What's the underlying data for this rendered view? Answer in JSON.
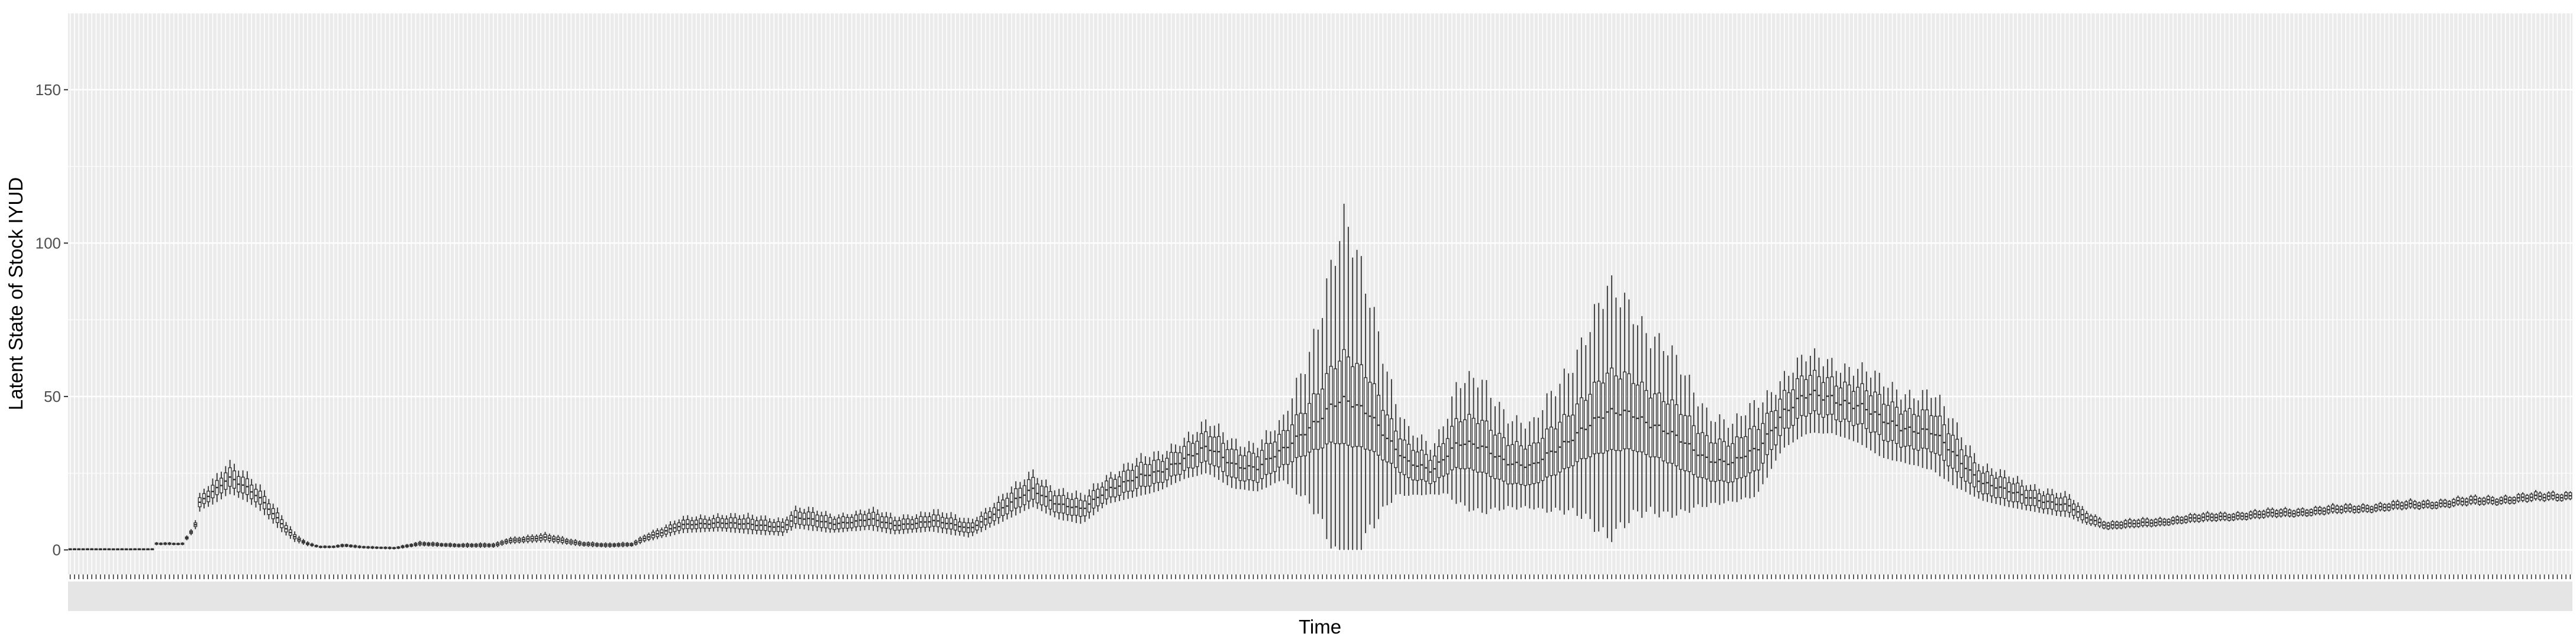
{
  "chart_data": {
    "type": "boxplot",
    "title": "",
    "xlabel": "Time",
    "ylabel": "Latent State of Stock IYUD",
    "ylim": [
      -8,
      175
    ],
    "y_ticks": [
      0,
      50,
      100,
      150
    ],
    "x_ticks_legible": false,
    "grid": true,
    "legend": "none",
    "colors": {
      "panel": "#ebebeb",
      "grid": "#ffffff",
      "box": "#333333",
      "tick_text": "#4d4d4d"
    },
    "series": [
      {
        "name": "",
        "keyframes": {
          "x": [
            0,
            0.033,
            0.034,
            0.045,
            0.05,
            0.052,
            0.058,
            0.063,
            0.065,
            0.07,
            0.075,
            0.08,
            0.085,
            0.09,
            0.095,
            0.1,
            0.105,
            0.11,
            0.115,
            0.12,
            0.13,
            0.14,
            0.155,
            0.17,
            0.175,
            0.19,
            0.205,
            0.215,
            0.225,
            0.23,
            0.245,
            0.26,
            0.275,
            0.285,
            0.29,
            0.295,
            0.305,
            0.32,
            0.33,
            0.345,
            0.36,
            0.37,
            0.38,
            0.385,
            0.395,
            0.405,
            0.415,
            0.425,
            0.435,
            0.445,
            0.455,
            0.465,
            0.475,
            0.485,
            0.495,
            0.505,
            0.51,
            0.52,
            0.53,
            0.535,
            0.545,
            0.55,
            0.555,
            0.565,
            0.575,
            0.585,
            0.595,
            0.605,
            0.615,
            0.625,
            0.635,
            0.645,
            0.655,
            0.665,
            0.675,
            0.685,
            0.695,
            0.705,
            0.715,
            0.725,
            0.735,
            0.745,
            0.755,
            0.765,
            0.775,
            0.785,
            0.795,
            0.8,
            0.805,
            0.815,
            0.825,
            0.835,
            0.845,
            0.855,
            0.865,
            0.875,
            0.885,
            0.895,
            0.905,
            0.915,
            0.925,
            0.935,
            0.945,
            0.955,
            0.965,
            0.975,
            0.985,
            0.995,
            1.0
          ],
          "median": [
            0.3,
            0.3,
            2,
            2,
            8,
            16,
            19,
            23,
            23,
            21,
            18,
            13,
            8,
            4,
            2,
            1,
            1,
            1.5,
            1,
            0.8,
            0.6,
            2,
            1.5,
            1.5,
            3,
            4,
            2,
            1.5,
            1.8,
            4,
            8,
            9,
            8,
            7.5,
            10.5,
            10,
            8.5,
            10,
            8,
            9.5,
            7,
            12,
            17,
            20,
            15,
            13,
            20,
            23,
            25,
            30,
            33,
            28,
            27,
            32,
            40,
            47,
            48,
            45,
            33,
            28,
            26,
            31,
            35,
            33,
            29,
            27,
            33,
            40,
            44,
            45,
            40,
            35,
            30,
            28,
            33,
            45,
            50,
            50,
            47,
            42,
            40,
            38,
            30,
            22,
            19,
            17,
            15,
            14,
            11,
            8,
            8.5,
            9,
            10,
            10.5,
            11,
            11.5,
            12,
            12.5,
            13,
            13.5,
            14,
            14.5,
            15,
            15.5,
            16,
            16.5,
            17,
            17.5,
            17.8
          ],
          "q_half": [
            0,
            0,
            0.2,
            0.2,
            0.6,
            1.5,
            2,
            2.8,
            2.8,
            2.6,
            2.2,
            1.8,
            1.2,
            0.6,
            0.3,
            0.2,
            0.2,
            0.3,
            0.2,
            0.2,
            0.2,
            0.4,
            0.4,
            0.4,
            0.6,
            0.8,
            0.5,
            0.4,
            0.4,
            0.8,
            1.3,
            1.6,
            1.6,
            1.6,
            2,
            2,
            1.8,
            2,
            1.6,
            1.8,
            1.5,
            2.2,
            3,
            3.5,
            2.8,
            2.4,
            3,
            3.5,
            3.5,
            4,
            4.5,
            4.5,
            4.5,
            5,
            8,
            12,
            14,
            12,
            6,
            5,
            4,
            6,
            8,
            8,
            7,
            6,
            8,
            10,
            12,
            12,
            10,
            9,
            7,
            6,
            7,
            6,
            6,
            6,
            6,
            6,
            6,
            6,
            5,
            3.5,
            3,
            2.5,
            2.2,
            2,
            1.5,
            1,
            1,
            1,
            1,
            1,
            1,
            1,
            1,
            1,
            1,
            1,
            1,
            1,
            1,
            1,
            1,
            1,
            1,
            1,
            1
          ],
          "w_half": [
            0.2,
            0.2,
            0.5,
            0.5,
            1.5,
            3,
            4,
            5,
            5,
            5,
            4.5,
            3.5,
            2.5,
            1.5,
            0.8,
            0.5,
            0.5,
            0.6,
            0.5,
            0.5,
            0.5,
            0.8,
            0.8,
            0.8,
            1.2,
            1.5,
            1,
            0.8,
            0.8,
            1.5,
            2.5,
            3,
            3,
            3,
            3.5,
            3.5,
            3,
            3.5,
            3,
            3.5,
            3,
            4,
            5,
            6,
            5,
            4.5,
            5,
            6,
            6,
            7,
            8,
            8,
            8,
            9,
            25,
            45,
            55,
            40,
            15,
            10,
            8,
            13,
            20,
            20,
            16,
            13,
            20,
            30,
            38,
            35,
            28,
            22,
            16,
            12,
            15,
            12,
            12,
            12,
            12,
            12,
            12,
            12,
            10,
            6,
            5,
            4.5,
            4,
            3.5,
            2.5,
            1.5,
            1.5,
            1.5,
            1.5,
            1.5,
            1.5,
            1.5,
            1.5,
            1.5,
            1.5,
            1.5,
            1.5,
            1.5,
            1.5,
            1.5,
            1.5,
            1.5,
            1.5,
            1.5,
            1.5
          ]
        }
      }
    ]
  }
}
